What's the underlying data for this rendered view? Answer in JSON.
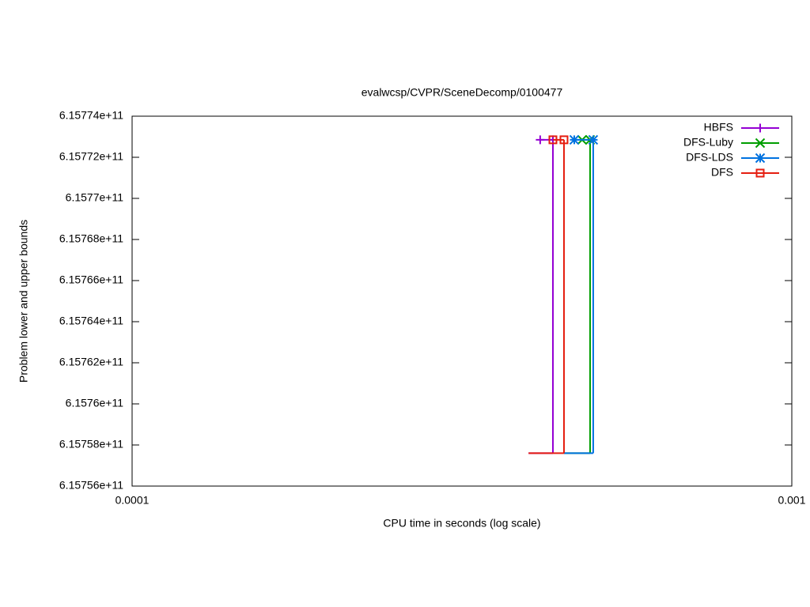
{
  "chart_data": {
    "type": "step",
    "title": "evalwcsp/CVPR/SceneDecomp/0100477",
    "xlabel": "CPU time in seconds (log scale)",
    "ylabel": "Problem lower and upper bounds",
    "xscale": "log",
    "xlim": [
      0.0001,
      0.001
    ],
    "xticks": [
      0.0001,
      0.001
    ],
    "ylim": [
      615756000000,
      615774000000
    ],
    "yticks": [
      {
        "value": 615756000000,
        "label": "6.15756e+11"
      },
      {
        "value": 615758000000,
        "label": "6.15758e+11"
      },
      {
        "value": 615760000000,
        "label": "6.1576e+11"
      },
      {
        "value": 615762000000,
        "label": "6.15762e+11"
      },
      {
        "value": 615764000000,
        "label": "6.15764e+11"
      },
      {
        "value": 615766000000,
        "label": "6.15766e+11"
      },
      {
        "value": 615768000000,
        "label": "6.15768e+11"
      },
      {
        "value": 615770000000,
        "label": "6.1577e+11"
      },
      {
        "value": 615772000000,
        "label": "6.15772e+11"
      },
      {
        "value": 615774000000,
        "label": "6.15774e+11"
      }
    ],
    "legend": "top-right",
    "series": [
      {
        "name": "HBFS",
        "color": "#9400d3",
        "marker": "plus",
        "lower": {
          "x": [
            0.000399,
            0.0004344
          ],
          "values": [
            615757600000,
            615757600000
          ]
        },
        "upper": {
          "x": [
            0.0004155,
            0.0004344
          ],
          "values": [
            615772850000,
            615772850000
          ]
        }
      },
      {
        "name": "DFS-Luby",
        "color": "#009e00",
        "marker": "cross",
        "lower": {
          "x": [
            0.0004515,
            0.0004946
          ],
          "values": [
            615757600000,
            615757600000
          ]
        },
        "upper": {
          "x": [
            0.000481,
            0.0004946
          ],
          "values": [
            615772850000,
            615772850000
          ]
        }
      },
      {
        "name": "DFS-LDS",
        "color": "#0072e0",
        "marker": "star",
        "lower": {
          "x": [
            0.0004515,
            0.0005
          ],
          "values": [
            615757600000,
            615757600000
          ]
        },
        "upper": {
          "x": [
            0.000468,
            0.0005
          ],
          "values": [
            615772850000,
            615772850000
          ]
        }
      },
      {
        "name": "DFS",
        "color": "#e51e10",
        "marker": "square",
        "lower": {
          "x": [
            0.000399,
            0.0004515
          ],
          "values": [
            615757600000,
            615757600000
          ]
        },
        "upper": {
          "x": [
            0.0004344,
            0.0004515
          ],
          "values": [
            615772850000,
            615772850000
          ]
        }
      }
    ]
  }
}
